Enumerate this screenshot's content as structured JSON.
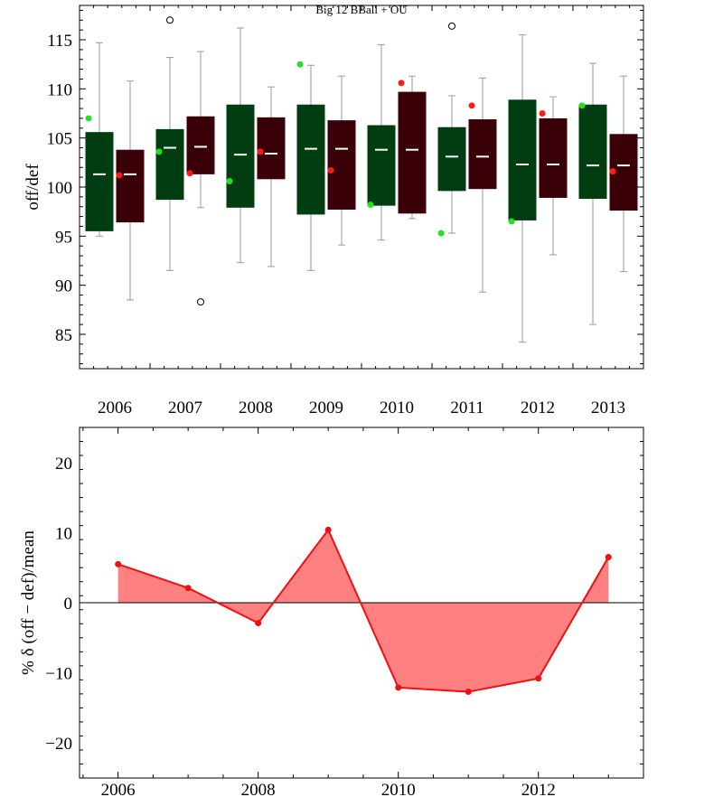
{
  "chart_data": [
    {
      "type": "box",
      "title": "Big 12 BBall + OU",
      "xlabel": "",
      "ylabel": "off/def",
      "ylim": [
        81.5,
        118.5
      ],
      "yticks": [
        85,
        90,
        95,
        100,
        105,
        110,
        115
      ],
      "categories": [
        "2006",
        "2007",
        "2008",
        "2009",
        "2010",
        "2011",
        "2012",
        "2013"
      ],
      "series": [
        {
          "name": "",
          "color": "#003d10",
          "marker_color": "#22e022",
          "boxes": [
            {
              "whisker_low": 95.0,
              "q1": 95.5,
              "median": 101.3,
              "q3": 105.6,
              "whisker_high": 114.7,
              "marker": 107.0,
              "outliers": []
            },
            {
              "whisker_low": 91.5,
              "q1": 98.7,
              "median": 104.0,
              "q3": 105.9,
              "whisker_high": 113.2,
              "marker": 103.6,
              "outliers": [
                117.0
              ]
            },
            {
              "whisker_low": 92.3,
              "q1": 97.9,
              "median": 103.3,
              "q3": 108.4,
              "whisker_high": 116.2,
              "marker": 100.6,
              "outliers": []
            },
            {
              "whisker_low": 91.5,
              "q1": 97.2,
              "median": 103.9,
              "q3": 108.4,
              "whisker_high": 112.4,
              "marker": 112.5,
              "outliers": []
            },
            {
              "whisker_low": 94.6,
              "q1": 98.1,
              "median": 103.8,
              "q3": 106.3,
              "whisker_high": 114.5,
              "marker": 98.2,
              "outliers": []
            },
            {
              "whisker_low": 95.3,
              "q1": 99.6,
              "median": 103.1,
              "q3": 106.1,
              "whisker_high": 109.3,
              "marker": 95.3,
              "outliers": [
                116.4
              ]
            },
            {
              "whisker_low": 84.2,
              "q1": 96.6,
              "median": 102.3,
              "q3": 108.9,
              "whisker_high": 115.5,
              "marker": 96.5,
              "outliers": []
            },
            {
              "whisker_low": 86.0,
              "q1": 98.8,
              "median": 102.2,
              "q3": 108.4,
              "whisker_high": 112.6,
              "marker": 108.3,
              "outliers": []
            }
          ]
        },
        {
          "name": "",
          "color": "#3a0008",
          "marker_color": "#ff1a1a",
          "boxes": [
            {
              "whisker_low": 88.5,
              "q1": 96.4,
              "median": 101.3,
              "q3": 103.8,
              "whisker_high": 110.8,
              "marker": 101.2,
              "outliers": []
            },
            {
              "whisker_low": 97.9,
              "q1": 101.3,
              "median": 104.1,
              "q3": 107.2,
              "whisker_high": 113.8,
              "marker": 101.4,
              "outliers": [
                88.3
              ]
            },
            {
              "whisker_low": 91.9,
              "q1": 100.8,
              "median": 103.4,
              "q3": 107.1,
              "whisker_high": 110.2,
              "marker": 103.6,
              "outliers": []
            },
            {
              "whisker_low": 94.1,
              "q1": 97.7,
              "median": 103.9,
              "q3": 106.8,
              "whisker_high": 111.3,
              "marker": 101.7,
              "outliers": []
            },
            {
              "whisker_low": 96.8,
              "q1": 97.3,
              "median": 103.8,
              "q3": 109.7,
              "whisker_high": 111.3,
              "marker": 110.6,
              "outliers": []
            },
            {
              "whisker_low": 89.3,
              "q1": 99.8,
              "median": 103.1,
              "q3": 106.9,
              "whisker_high": 111.1,
              "marker": 108.3,
              "outliers": []
            },
            {
              "whisker_low": 93.1,
              "q1": 98.9,
              "median": 102.3,
              "q3": 107.0,
              "whisker_high": 109.2,
              "marker": 107.5,
              "outliers": []
            },
            {
              "whisker_low": 91.4,
              "q1": 97.6,
              "median": 102.2,
              "q3": 105.4,
              "whisker_high": 111.3,
              "marker": 101.6,
              "outliers": []
            }
          ]
        }
      ]
    },
    {
      "type": "area",
      "title": "",
      "xlabel": "",
      "ylabel": "% δ (off − def)/mean",
      "xlim": [
        2005.45,
        2013.5
      ],
      "ylim": [
        -25,
        25
      ],
      "xticks": [
        2006,
        2008,
        2010,
        2012
      ],
      "yticks": [
        -20,
        -10,
        0,
        10,
        20
      ],
      "baseline": 0,
      "line_color": "#ee1111",
      "fill_color": "#ff8080",
      "x": [
        2006,
        2007,
        2008,
        2009,
        2010,
        2011,
        2012,
        2013
      ],
      "y": [
        5.5,
        2.1,
        -2.9,
        10.4,
        -12.1,
        -12.7,
        -10.8,
        6.5
      ]
    }
  ]
}
